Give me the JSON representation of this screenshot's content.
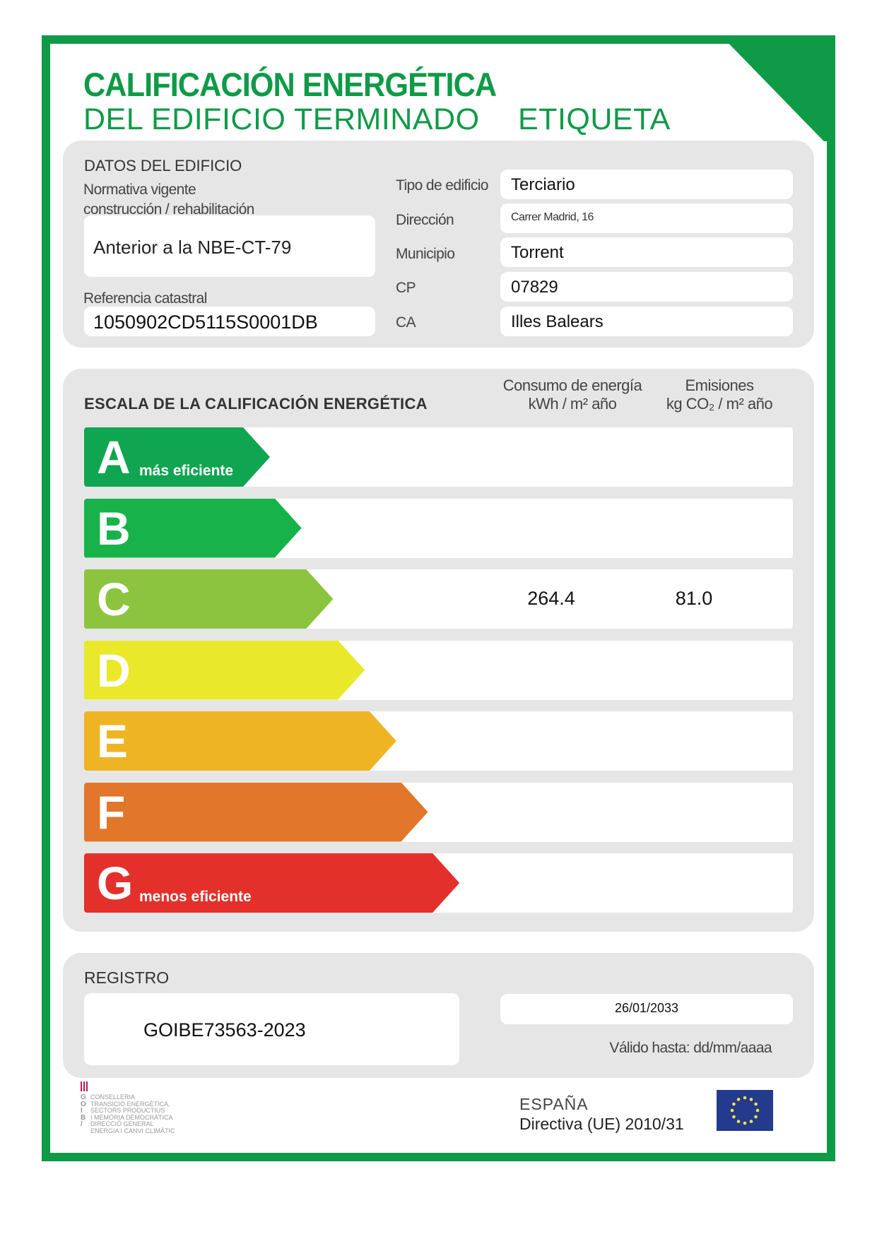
{
  "header": {
    "title_line1": "CALIFICACIÓN ENERGÉTICA",
    "title_line2": "DEL EDIFICIO TERMINADO",
    "title_label": "ETIQUETA"
  },
  "building": {
    "section_title": "DATOS DEL EDIFICIO",
    "normativa_label_1": "Normativa vigente",
    "normativa_label_2": "construcción / rehabilitación",
    "normativa_value": "Anterior a la NBE-CT-79",
    "ref_label": "Referencia catastral",
    "ref_value": "1050902CD5115S0001DB",
    "fields": [
      {
        "label": "Tipo de edificio",
        "value": "Terciario"
      },
      {
        "label": "Dirección",
        "value": "Carrer Madrid, 16"
      },
      {
        "label": "Municipio",
        "value": "Torrent"
      },
      {
        "label": "CP",
        "value": "07829"
      },
      {
        "label": "CA",
        "value": "Illes Balears"
      }
    ]
  },
  "scale": {
    "title": "ESCALA DE LA CALIFICACIÓN ENERGÉTICA",
    "consumo_label": "Consumo de energía",
    "consumo_unit": "kWh  / m² año",
    "emisiones_label": "Emisiones",
    "emisiones_unit": "kg CO₂ / m² año",
    "classes": [
      {
        "letter": "A",
        "sub": "más eficiente",
        "color": "#10a550"
      },
      {
        "letter": "B",
        "sub": "",
        "color": "#18b24b"
      },
      {
        "letter": "C",
        "sub": "",
        "color": "#8cc43f"
      },
      {
        "letter": "D",
        "sub": "",
        "color": "#e9e82a"
      },
      {
        "letter": "E",
        "sub": "",
        "color": "#efb424"
      },
      {
        "letter": "F",
        "sub": "",
        "color": "#e2762a"
      },
      {
        "letter": "G",
        "sub": "menos eficiente",
        "color": "#e3302b"
      }
    ],
    "rating": "C",
    "consumo_value": "264.4",
    "emisiones_value": "81.0"
  },
  "registro": {
    "title": "REGISTRO",
    "number": "GOIBE73563-2023",
    "date": "26/01/2033",
    "valid_label": "Válido hasta: dd/mm/aaaa"
  },
  "footer": {
    "logo_lines": [
      "CONSELLERIA",
      "TRANSICIÓ ENERGÈTICA,",
      "SECTORS PRODUCTIUS",
      "I MEMÒRIA DEMOCRÀTICA",
      "DIRECCIÓ GENERAL",
      "ENERGIA I CANVI CLIMÀTIC"
    ],
    "logo_letters": "GOIB",
    "country": "ESPAÑA",
    "directive": "Directiva (UE) 2010/31",
    "eu_flag": "eu-flag-icon"
  }
}
